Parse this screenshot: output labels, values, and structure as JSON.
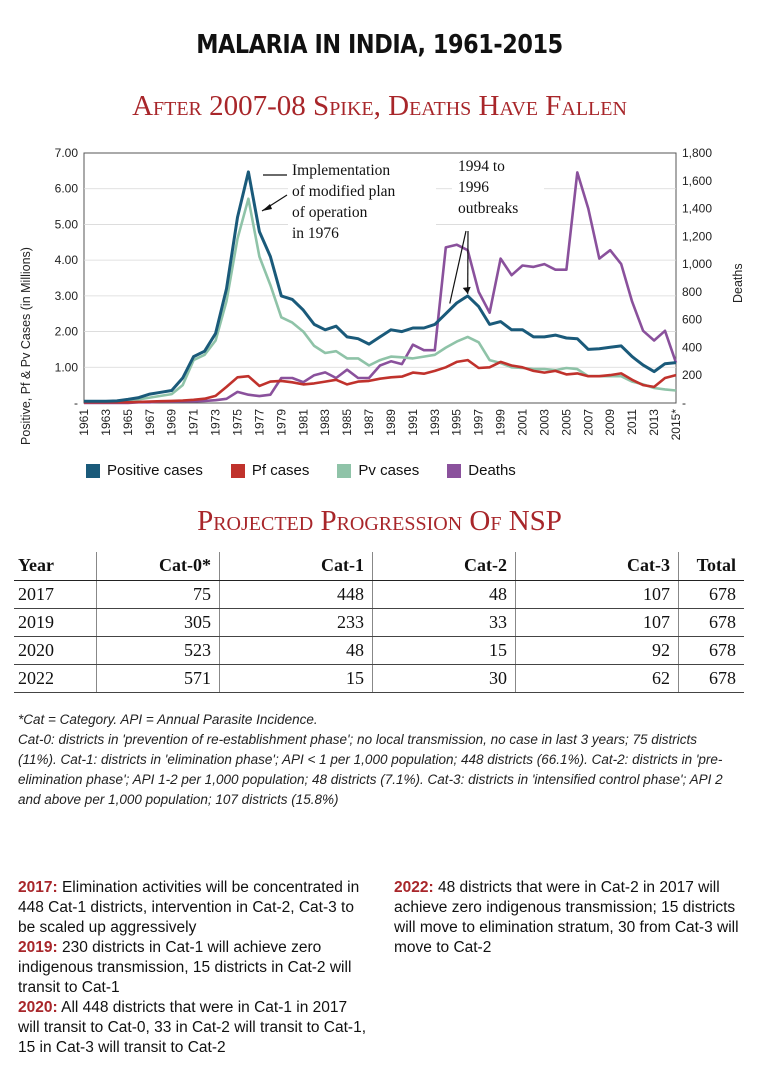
{
  "header": {
    "main_title": "MALARIA IN INDIA, 1961-2015",
    "chart_title": "After 2007-08 Spike, Deaths Have Fallen",
    "table_title": "Projected Progression Of NSP"
  },
  "chart_data": {
    "type": "line",
    "title": "After 2007-08 Spike, Deaths Have Fallen",
    "ylabel": "Positive, Pf & Pv Cases (in Millions)",
    "y2label": "Deaths",
    "ylim": [
      0,
      7
    ],
    "y2lim": [
      0,
      1800
    ],
    "xlim": [
      1961,
      2015
    ],
    "y_ticks": [
      "-",
      "1.00",
      "2.00",
      "3.00",
      "4.00",
      "5.00",
      "6.00",
      "7.00"
    ],
    "y2_ticks": [
      "-",
      "200",
      "400",
      "600",
      "800",
      "1,000",
      "1,200",
      "1,400",
      "1,600",
      "1,800"
    ],
    "x_ticks": [
      "1961",
      "1963",
      "1965",
      "1967",
      "1969",
      "1971",
      "1973",
      "1975",
      "1977",
      "1979",
      "1981",
      "1983",
      "1985",
      "1987",
      "1989",
      "1991",
      "1993",
      "1995",
      "1997",
      "1999",
      "2001",
      "2003",
      "2005",
      "2007",
      "2009",
      "2011",
      "2013",
      "2015*"
    ],
    "annotations": [
      {
        "id": "ann1976",
        "lines": [
          "Implementation",
          "of modified plan",
          "of operation",
          "in 1976"
        ]
      },
      {
        "id": "ann1994",
        "lines": [
          "1994 to",
          "1996",
          "outbreaks"
        ]
      }
    ],
    "series": [
      {
        "name": "Positive cases",
        "color": "#1a5a7a",
        "axis": "left",
        "x": [
          1961,
          1962,
          1963,
          1964,
          1965,
          1966,
          1967,
          1968,
          1969,
          1970,
          1971,
          1972,
          1973,
          1974,
          1975,
          1976,
          1977,
          1978,
          1979,
          1980,
          1981,
          1982,
          1983,
          1984,
          1985,
          1986,
          1987,
          1988,
          1989,
          1990,
          1991,
          1992,
          1993,
          1994,
          1995,
          1996,
          1997,
          1998,
          1999,
          2000,
          2001,
          2002,
          2003,
          2004,
          2005,
          2006,
          2007,
          2008,
          2009,
          2010,
          2011,
          2012,
          2013,
          2014,
          2015
        ],
        "values": [
          0.05,
          0.05,
          0.05,
          0.06,
          0.1,
          0.15,
          0.25,
          0.3,
          0.35,
          0.7,
          1.3,
          1.45,
          1.95,
          3.2,
          5.2,
          6.47,
          4.8,
          4.1,
          3.0,
          2.9,
          2.6,
          2.2,
          2.05,
          2.15,
          1.85,
          1.8,
          1.65,
          1.85,
          2.05,
          2.0,
          2.1,
          2.1,
          2.2,
          2.5,
          2.8,
          3.0,
          2.7,
          2.2,
          2.28,
          2.05,
          2.05,
          1.85,
          1.85,
          1.9,
          1.82,
          1.8,
          1.5,
          1.52,
          1.56,
          1.6,
          1.3,
          1.06,
          0.88,
          1.1,
          1.13
        ]
      },
      {
        "name": "Pf cases",
        "color": "#c0322c",
        "axis": "left",
        "x": [
          1961,
          1962,
          1963,
          1964,
          1965,
          1966,
          1967,
          1968,
          1969,
          1970,
          1971,
          1972,
          1973,
          1974,
          1975,
          1976,
          1977,
          1978,
          1979,
          1980,
          1981,
          1982,
          1983,
          1984,
          1985,
          1986,
          1987,
          1988,
          1989,
          1990,
          1991,
          1992,
          1993,
          1994,
          1995,
          1996,
          1997,
          1998,
          1999,
          2000,
          2001,
          2002,
          2003,
          2004,
          2005,
          2006,
          2007,
          2008,
          2009,
          2010,
          2011,
          2012,
          2013,
          2014,
          2015
        ],
        "values": [
          0.02,
          0.02,
          0.02,
          0.02,
          0.02,
          0.03,
          0.04,
          0.05,
          0.06,
          0.07,
          0.09,
          0.12,
          0.2,
          0.45,
          0.72,
          0.75,
          0.48,
          0.6,
          0.62,
          0.58,
          0.52,
          0.55,
          0.6,
          0.65,
          0.52,
          0.6,
          0.62,
          0.68,
          0.72,
          0.74,
          0.85,
          0.82,
          0.9,
          1.0,
          1.15,
          1.2,
          0.98,
          1.0,
          1.15,
          1.05,
          1.0,
          0.9,
          0.85,
          0.9,
          0.8,
          0.83,
          0.75,
          0.75,
          0.78,
          0.83,
          0.65,
          0.5,
          0.45,
          0.7,
          0.78
        ]
      },
      {
        "name": "Pv cases",
        "color": "#8fc3a8",
        "axis": "left",
        "x": [
          1961,
          1962,
          1963,
          1964,
          1965,
          1966,
          1967,
          1968,
          1969,
          1970,
          1971,
          1972,
          1973,
          1974,
          1975,
          1976,
          1977,
          1978,
          1979,
          1980,
          1981,
          1982,
          1983,
          1984,
          1985,
          1986,
          1987,
          1988,
          1989,
          1990,
          1991,
          1992,
          1993,
          1994,
          1995,
          1996,
          1997,
          1998,
          1999,
          2000,
          2001,
          2002,
          2003,
          2004,
          2005,
          2006,
          2007,
          2008,
          2009,
          2010,
          2011,
          2012,
          2013,
          2014,
          2015
        ],
        "values": [
          0.03,
          0.03,
          0.03,
          0.04,
          0.06,
          0.1,
          0.15,
          0.2,
          0.25,
          0.5,
          1.2,
          1.35,
          1.75,
          2.85,
          4.6,
          5.72,
          4.1,
          3.3,
          2.4,
          2.25,
          2.0,
          1.6,
          1.4,
          1.45,
          1.25,
          1.25,
          1.05,
          1.2,
          1.3,
          1.28,
          1.25,
          1.3,
          1.35,
          1.55,
          1.72,
          1.85,
          1.7,
          1.2,
          1.12,
          1.0,
          0.98,
          0.95,
          0.95,
          0.92,
          0.98,
          0.95,
          0.75,
          0.75,
          0.75,
          0.75,
          0.6,
          0.52,
          0.42,
          0.38,
          0.35
        ]
      },
      {
        "name": "Deaths",
        "color": "#8a519c",
        "axis": "right",
        "x": [
          1961,
          1962,
          1963,
          1964,
          1965,
          1966,
          1967,
          1968,
          1969,
          1970,
          1971,
          1972,
          1973,
          1974,
          1975,
          1976,
          1977,
          1978,
          1979,
          1980,
          1981,
          1982,
          1983,
          1984,
          1985,
          1986,
          1987,
          1988,
          1989,
          1990,
          1991,
          1992,
          1993,
          1994,
          1995,
          1996,
          1997,
          1998,
          1999,
          2000,
          2001,
          2002,
          2003,
          2004,
          2005,
          2006,
          2007,
          2008,
          2009,
          2010,
          2011,
          2012,
          2013,
          2014,
          2015
        ],
        "values": [
          0,
          0,
          0,
          0,
          0,
          5,
          5,
          10,
          10,
          12,
          12,
          15,
          20,
          30,
          80,
          60,
          50,
          60,
          180,
          180,
          150,
          200,
          220,
          180,
          240,
          180,
          180,
          270,
          300,
          280,
          420,
          380,
          380,
          1120,
          1140,
          1100,
          800,
          650,
          1040,
          920,
          990,
          980,
          1000,
          960,
          960,
          1660,
          1400,
          1040,
          1100,
          1000,
          730,
          520,
          450,
          520,
          290
        ]
      }
    ]
  },
  "table": {
    "headers": [
      "Year",
      "Cat-0*",
      "Cat-1",
      "Cat-2",
      "Cat-3",
      "Total"
    ],
    "rows": [
      [
        "2017",
        "75",
        "448",
        "48",
        "107",
        "678"
      ],
      [
        "2019",
        "305",
        "233",
        "33",
        "107",
        "678"
      ],
      [
        "2020",
        "523",
        "48",
        "15",
        "92",
        "678"
      ],
      [
        "2022",
        "571",
        "15",
        "30",
        "62",
        "678"
      ]
    ]
  },
  "notes": {
    "line1": "*Cat = Category. API = Annual Parasite Incidence.",
    "line2": "Cat-0: districts in 'prevention of re-establishment phase'; no local transmission, no case in last 3 years; 75 districts (11%). Cat-1: districts in 'elimination phase'; API < 1 per 1,000 population; 448 districts (66.1%). Cat-2: districts in 'pre-elimination phase'; API 1-2 per 1,000 population; 48 districts (7.1%). Cat-3: districts in 'intensified control phase'; API 2 and above per 1,000 population; 107 districts (15.8%)"
  },
  "bottom": {
    "y2017": "2017:",
    "t2017": " Elimination activities will be concentrated in 448 Cat-1 districts, intervention in Cat-2, Cat-3  to be scaled up aggressively",
    "y2019": "2019:",
    "t2019": " 230 districts in Cat-1 will achieve zero indigenous transmission, 15 districts in Cat-2 will transit to Cat-1",
    "y2020": "2020:",
    "t2020": " All 448 districts that were in Cat-1 in 2017 will transit to Cat-0, 33 in Cat-2 will transit to Cat-1, 15 in Cat-3 will transit to Cat-2",
    "y2022": "2022:",
    "t2022": " 48 districts that were in Cat-2 in 2017 will achieve zero indigenous transmission; 15 districts will move to elimination stratum, 30 from Cat-3 will move to Cat-2"
  }
}
